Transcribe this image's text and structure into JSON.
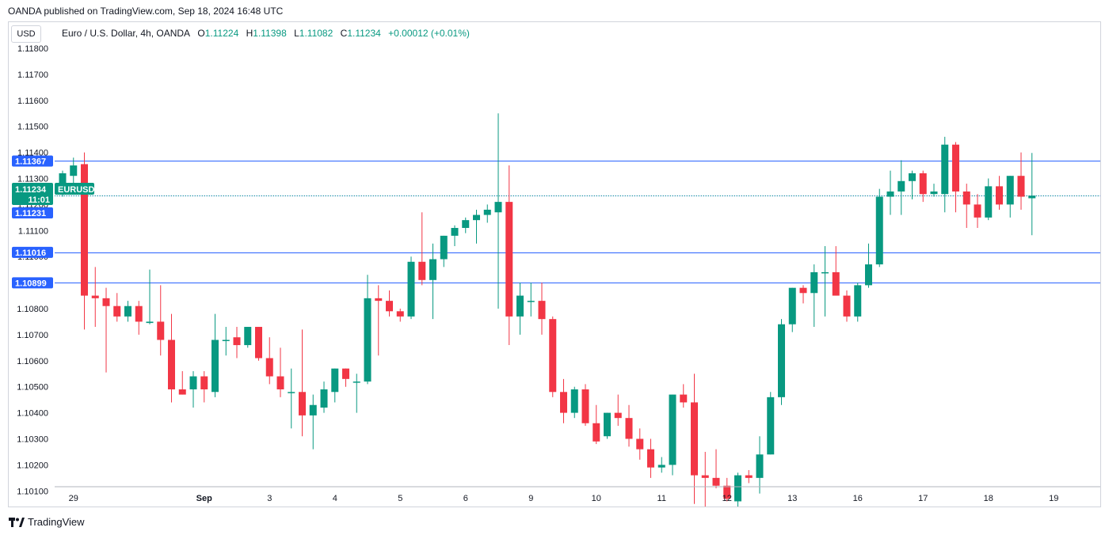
{
  "attribution": "OANDA published on TradingView.com, Sep 18, 2024 16:48 UTC",
  "currency": "USD",
  "legend": {
    "instrument": "Euro / U.S. Dollar, 4h, OANDA",
    "open_label": "O",
    "open": "1.11224",
    "high_label": "H",
    "high": "1.11398",
    "low_label": "L",
    "low": "1.11082",
    "close_label": "C",
    "close": "1.11234",
    "change": "+0.00012 (+0.01%)"
  },
  "footer_brand": "TradingView",
  "colors": {
    "up": "#089981",
    "down": "#f23645",
    "level_line": "#2962ff",
    "current": "#089981"
  },
  "chart_data": {
    "type": "candlestick",
    "symbol": "EURUSD",
    "timeframe": "4h",
    "y_range": [
      1.1002,
      1.1189
    ],
    "y_ticks": [
      "1.11800",
      "1.11700",
      "1.11600",
      "1.11500",
      "1.11400",
      "1.11300",
      "1.11200",
      "1.11100",
      "1.11000",
      "1.10900",
      "1.10800",
      "1.10700",
      "1.10600",
      "1.10500",
      "1.10400",
      "1.10300",
      "1.10200",
      "1.10100"
    ],
    "x_labels": [
      {
        "label": "29",
        "bar": 1
      },
      {
        "label": "Sep",
        "bar": 13
      },
      {
        "label": "3",
        "bar": 19
      },
      {
        "label": "4",
        "bar": 25
      },
      {
        "label": "5",
        "bar": 31
      },
      {
        "label": "6",
        "bar": 37
      },
      {
        "label": "9",
        "bar": 43
      },
      {
        "label": "10",
        "bar": 49
      },
      {
        "label": "11",
        "bar": 55
      },
      {
        "label": "12",
        "bar": 61
      },
      {
        "label": "13",
        "bar": 67
      },
      {
        "label": "16",
        "bar": 73
      },
      {
        "label": "17",
        "bar": 79
      },
      {
        "label": "18",
        "bar": 85
      },
      {
        "label": "19",
        "bar": 91
      }
    ],
    "candles": [
      [
        1.11245,
        1.1133,
        1.1123,
        1.1132
      ],
      [
        1.1131,
        1.1138,
        1.1126,
        1.1135
      ],
      [
        1.11355,
        1.114,
        1.1072,
        1.1085
      ],
      [
        1.1085,
        1.1096,
        1.1073,
        1.1084
      ],
      [
        1.1084,
        1.1088,
        1.10555,
        1.1081
      ],
      [
        1.1081,
        1.1086,
        1.1075,
        1.1077
      ],
      [
        1.1077,
        1.1083,
        1.1075,
        1.1081
      ],
      [
        1.1081,
        1.1083,
        1.107,
        1.1075
      ],
      [
        1.10745,
        1.1095,
        1.1074,
        1.1075
      ],
      [
        1.1075,
        1.1089,
        1.1062,
        1.1068
      ],
      [
        1.1068,
        1.1078,
        1.1044,
        1.1049
      ],
      [
        1.1049,
        1.1056,
        1.1047,
        1.1047
      ],
      [
        1.1049,
        1.1056,
        1.1042,
        1.1054
      ],
      [
        1.1054,
        1.1056,
        1.1044,
        1.1049
      ],
      [
        1.1048,
        1.1078,
        1.1046,
        1.1068
      ],
      [
        1.1068,
        1.1073,
        1.1062,
        1.1068
      ],
      [
        1.1069,
        1.1073,
        1.1061,
        1.1066
      ],
      [
        1.1066,
        1.1073,
        1.1065,
        1.1073
      ],
      [
        1.1073,
        1.1073,
        1.106,
        1.1061
      ],
      [
        1.1061,
        1.1069,
        1.1051,
        1.1054
      ],
      [
        1.1054,
        1.1065,
        1.1046,
        1.1049
      ],
      [
        1.1048,
        1.1057,
        1.1034,
        1.1048
      ],
      [
        1.1048,
        1.1072,
        1.1031,
        1.1039
      ],
      [
        1.1039,
        1.1047,
        1.1026,
        1.1043
      ],
      [
        1.1042,
        1.1052,
        1.104,
        1.1049
      ],
      [
        1.1048,
        1.1057,
        1.1044,
        1.1057
      ],
      [
        1.1057,
        1.1057,
        1.105,
        1.1053
      ],
      [
        1.1052,
        1.1055,
        1.104,
        1.1052
      ],
      [
        1.1052,
        1.1093,
        1.1051,
        1.1084
      ],
      [
        1.1084,
        1.1089,
        1.1062,
        1.1083
      ],
      [
        1.1083,
        1.1087,
        1.1077,
        1.1079
      ],
      [
        1.1079,
        1.108,
        1.1075,
        1.1077
      ],
      [
        1.1077,
        1.11,
        1.1076,
        1.1098
      ],
      [
        1.1098,
        1.1117,
        1.1089,
        1.1091
      ],
      [
        1.1091,
        1.1105,
        1.1076,
        1.1099
      ],
      [
        1.1099,
        1.1108,
        1.1096,
        1.1108
      ],
      [
        1.1108,
        1.1112,
        1.1104,
        1.1111
      ],
      [
        1.1111,
        1.1115,
        1.1109,
        1.1114
      ],
      [
        1.1114,
        1.1118,
        1.1105,
        1.1116
      ],
      [
        1.1116,
        1.112,
        1.1113,
        1.1118
      ],
      [
        1.1117,
        1.1155,
        1.108,
        1.1121
      ],
      [
        1.1121,
        1.1135,
        1.1066,
        1.1077
      ],
      [
        1.1077,
        1.109,
        1.107,
        1.1085
      ],
      [
        1.1083,
        1.109,
        1.1077,
        1.1083
      ],
      [
        1.1083,
        1.109,
        1.107,
        1.1076
      ],
      [
        1.1076,
        1.1077,
        1.1046,
        1.1048
      ],
      [
        1.1048,
        1.1053,
        1.1036,
        1.104
      ],
      [
        1.104,
        1.105,
        1.1038,
        1.1049
      ],
      [
        1.1049,
        1.1051,
        1.1035,
        1.1036
      ],
      [
        1.1036,
        1.1043,
        1.1028,
        1.1029
      ],
      [
        1.1031,
        1.104,
        1.103,
        1.104
      ],
      [
        1.104,
        1.1047,
        1.1035,
        1.1038
      ],
      [
        1.1038,
        1.1043,
        1.1027,
        1.103
      ],
      [
        1.103,
        1.1034,
        1.1022,
        1.1026
      ],
      [
        1.1026,
        1.103,
        1.1015,
        1.1019
      ],
      [
        1.1019,
        1.1023,
        1.1017,
        1.102
      ],
      [
        1.102,
        1.1047,
        1.1016,
        1.1047
      ],
      [
        1.1047,
        1.1051,
        1.1042,
        1.1044
      ],
      [
        1.1044,
        1.1055,
        1.1005,
        1.1016
      ],
      [
        1.1016,
        1.1025,
        1.1004,
        1.1015
      ],
      [
        1.1015,
        1.1026,
        1.1011,
        1.1012
      ],
      [
        1.1012,
        1.1015,
        1.1006,
        1.1007
      ],
      [
        1.1006,
        1.1017,
        1.1004,
        1.1016
      ],
      [
        1.1016,
        1.1018,
        1.1013,
        1.1015
      ],
      [
        1.1015,
        1.1031,
        1.1009,
        1.1024
      ],
      [
        1.1024,
        1.1048,
        1.1024,
        1.1046
      ],
      [
        1.1046,
        1.1076,
        1.1043,
        1.1074
      ],
      [
        1.1074,
        1.1088,
        1.1071,
        1.1088
      ],
      [
        1.1088,
        1.1089,
        1.1082,
        1.1086
      ],
      [
        1.1086,
        1.1097,
        1.1073,
        1.1094
      ],
      [
        1.1094,
        1.1104,
        1.1077,
        1.1094
      ],
      [
        1.1094,
        1.1104,
        1.1085,
        1.1085
      ],
      [
        1.1085,
        1.1087,
        1.1075,
        1.1077
      ],
      [
        1.1077,
        1.109,
        1.1075,
        1.1089
      ],
      [
        1.1089,
        1.1105,
        1.1088,
        1.1097
      ],
      [
        1.1097,
        1.1126,
        1.1096,
        1.1123
      ],
      [
        1.1123,
        1.1133,
        1.1116,
        1.1125
      ],
      [
        1.1125,
        1.1137,
        1.1116,
        1.1129
      ],
      [
        1.1129,
        1.1133,
        1.1122,
        1.1132
      ],
      [
        1.1132,
        1.1133,
        1.1121,
        1.1124
      ],
      [
        1.1124,
        1.1128,
        1.1123,
        1.1125
      ],
      [
        1.1124,
        1.1146,
        1.1117,
        1.1143
      ],
      [
        1.1143,
        1.1144,
        1.1117,
        1.1125
      ],
      [
        1.1125,
        1.1128,
        1.1111,
        1.112
      ],
      [
        1.112,
        1.1124,
        1.1111,
        1.1115
      ],
      [
        1.1115,
        1.113,
        1.1114,
        1.1127
      ],
      [
        1.1127,
        1.1131,
        1.1118,
        1.112
      ],
      [
        1.112,
        1.1131,
        1.1115,
        1.1131
      ],
      [
        1.1131,
        1.114,
        1.1118,
        1.1123
      ],
      [
        1.11224,
        1.11398,
        1.11082,
        1.11234
      ]
    ],
    "horizontal_levels": [
      {
        "value": 1.11367,
        "label": "1.11367"
      },
      {
        "value": 1.11016,
        "label": "1.11016"
      },
      {
        "value": 1.10899,
        "label": "1.10899"
      }
    ],
    "current_price": {
      "value": 1.11234,
      "label": "1.11234",
      "symbol": "EURUSD",
      "countdown": "11:01"
    },
    "cursor_price": {
      "value": 1.11231,
      "label": "1.11231"
    }
  }
}
